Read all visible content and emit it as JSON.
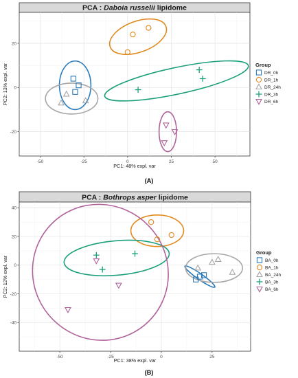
{
  "chart_data": [
    {
      "type": "scatter",
      "title_prefix": "PCA : ",
      "title_species": "Daboia russelii",
      "title_suffix": " lipidome",
      "xlabel": "PC1: 48% expl. var",
      "ylabel": "PC2: 13% expl. var",
      "xlim": [
        -62,
        70
      ],
      "ylim": [
        -31,
        34
      ],
      "x_ticks": [
        -50,
        -25,
        0,
        25,
        50
      ],
      "y_ticks": [
        -20,
        0,
        20
      ],
      "grid": true,
      "legend_title": "Group",
      "legend_position": "right",
      "panel_label": "(A)",
      "series": [
        {
          "name": "DR_0h",
          "marker": "square",
          "color": "#2b7bba",
          "points": [
            [
              -31,
              4
            ],
            [
              -28,
              1
            ],
            [
              -30,
              -2
            ]
          ],
          "ellipse": {
            "cx": -30,
            "cy": 1,
            "rx": 9,
            "ry": 11,
            "angle": 0
          }
        },
        {
          "name": "DR_1h",
          "marker": "circle",
          "color": "#e08a1e",
          "points": [
            [
              3,
              24
            ],
            [
              12,
              27
            ],
            [
              0,
              16
            ]
          ],
          "ellipse": {
            "cx": 6,
            "cy": 23,
            "rx": 17,
            "ry": 7,
            "angle": 20
          }
        },
        {
          "name": "DR_24h",
          "marker": "triangle-up",
          "color": "#a6a6a6",
          "points": [
            [
              -38,
              -7
            ],
            [
              -35,
              -3
            ],
            [
              -24,
              -6
            ]
          ],
          "ellipse": {
            "cx": -32,
            "cy": -5,
            "rx": 15,
            "ry": 7,
            "angle": 0
          }
        },
        {
          "name": "DR_3h",
          "marker": "plus",
          "color": "#1a9f7a",
          "points": [
            [
              41,
              8
            ],
            [
              43,
              4
            ],
            [
              6,
              -1
            ]
          ],
          "ellipse": {
            "cx": 28,
            "cy": 3,
            "rx": 42,
            "ry": 6,
            "angle": 12
          }
        },
        {
          "name": "DR_6h",
          "marker": "triangle-down",
          "color": "#b0639a",
          "points": [
            [
              22,
              -17
            ],
            [
              27,
              -20
            ],
            [
              21,
              -25
            ]
          ],
          "ellipse": {
            "cx": 23,
            "cy": -20,
            "rx": 5,
            "ry": 9,
            "angle": 0
          }
        }
      ]
    },
    {
      "type": "scatter",
      "title_prefix": "PCA : ",
      "title_species": "Bothrops asper",
      "title_suffix": " lipidome",
      "xlabel": "PC1: 38% expl. var",
      "ylabel": "PC2: 12% expl. var",
      "xlim": [
        -70,
        44
      ],
      "ylim": [
        -60,
        44
      ],
      "x_ticks": [
        -50,
        -25,
        0,
        25
      ],
      "y_ticks": [
        -40,
        -20,
        0,
        20,
        40
      ],
      "grid": true,
      "legend_title": "Group",
      "legend_position": "right",
      "panel_label": "(B)",
      "series": [
        {
          "name": "BA_0h",
          "marker": "square",
          "color": "#2b7bba",
          "points": [
            [
              17,
              -10
            ],
            [
              19,
              -8
            ],
            [
              21,
              -7
            ]
          ],
          "ellipse": {
            "cx": 19,
            "cy": -8,
            "rx": 9,
            "ry": 2,
            "angle": -35
          }
        },
        {
          "name": "BA_1h",
          "marker": "circle",
          "color": "#e08a1e",
          "points": [
            [
              -5,
              30
            ],
            [
              -2,
              18
            ],
            [
              5,
              21
            ]
          ],
          "ellipse": {
            "cx": -2,
            "cy": 24,
            "rx": 13,
            "ry": 11,
            "angle": 0
          }
        },
        {
          "name": "BA_24h",
          "marker": "triangle-up",
          "color": "#a6a6a6",
          "points": [
            [
              25,
              2
            ],
            [
              28,
              4
            ],
            [
              35,
              -5
            ],
            [
              18,
              -2
            ]
          ],
          "ellipse": {
            "cx": 26,
            "cy": -2,
            "rx": 14,
            "ry": 10,
            "angle": 0
          }
        },
        {
          "name": "BA_3h",
          "marker": "plus",
          "color": "#1a9f7a",
          "points": [
            [
              -32,
              7
            ],
            [
              -29,
              -3
            ],
            [
              -13,
              8
            ]
          ],
          "ellipse": {
            "cx": -22,
            "cy": 5,
            "rx": 26,
            "ry": 12,
            "angle": 5
          }
        },
        {
          "name": "BA_6h",
          "marker": "triangle-down",
          "color": "#b0639a",
          "points": [
            [
              -32,
              3
            ],
            [
              -21,
              -14
            ],
            [
              -46,
              -31
            ]
          ],
          "ellipse": {
            "cx": -30,
            "cy": -5,
            "rx": 33,
            "ry": 48,
            "angle": 45
          }
        }
      ]
    }
  ]
}
